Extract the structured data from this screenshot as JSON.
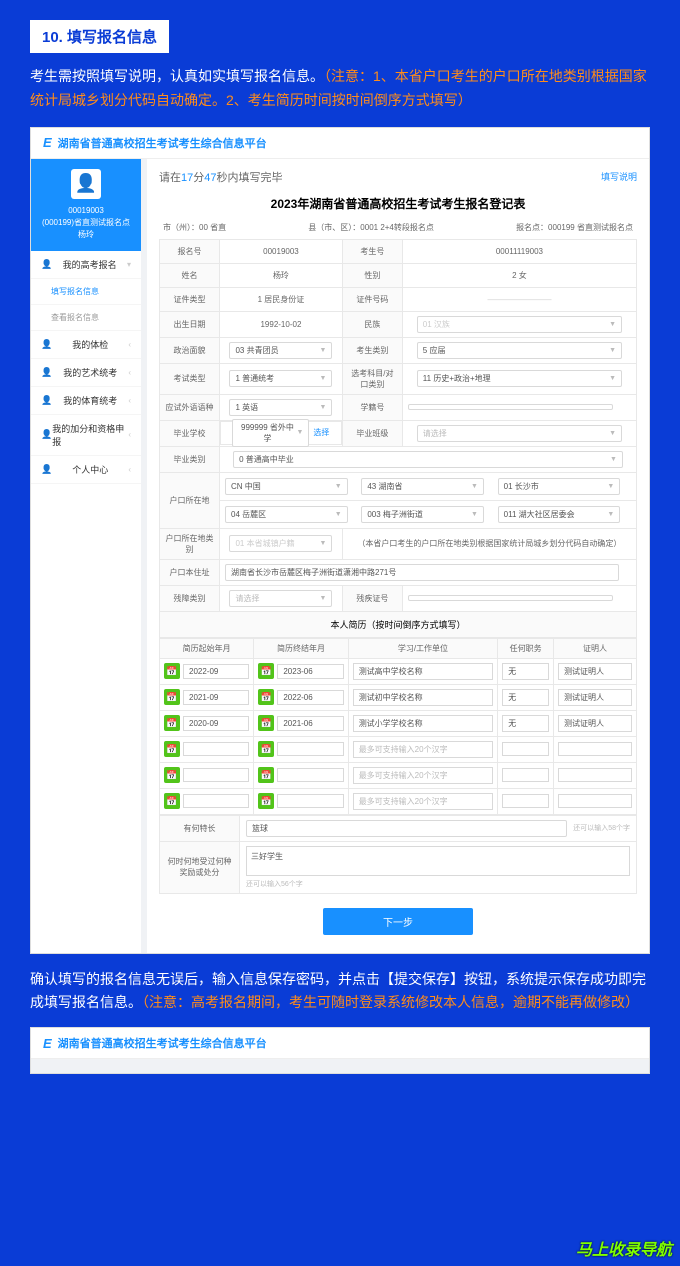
{
  "step": {
    "number": "10.",
    "title": "填写报名信息"
  },
  "instruction": {
    "main": "考生需按照填写说明，认真如实填写报名信息。",
    "note": "（注意：1、本省户口考生的户口所在地类别根据国家统计局城乡划分代码自动确定。2、考生简历时间按时间倒序方式填写）"
  },
  "app": {
    "logo": "E",
    "title": "湖南省普通高校招生考试考生综合信息平台"
  },
  "user": {
    "id": "00019003",
    "detail": "(000199)省直测试报名点",
    "name": "杨玲"
  },
  "nav": {
    "item1": "我的高考报名",
    "sub1": "填写报名信息",
    "sub2": "查看报名信息",
    "item2": "我的体检",
    "item3": "我的艺术统考",
    "item4": "我的体育统考",
    "item5": "我的加分和资格申报",
    "item6": "个人中心"
  },
  "timer": {
    "prefix": "请在",
    "min": "17",
    "minUnit": "分",
    "sec": "47",
    "secUnit": "秒内填写完毕",
    "link": "填写说明"
  },
  "formTitle": "2023年湖南省普通高校招生考试考生报名登记表",
  "meta": {
    "city": "市（州）：00 省直",
    "county": "县（市、区）：0001 2+4转段报名点",
    "site": "报名点：000199 省直测试报名点"
  },
  "labels": {
    "regNo": "报名号",
    "examNo": "考生号",
    "name": "姓名",
    "gender": "性别",
    "idType": "证件类型",
    "idNo": "证件号码",
    "birth": "出生日期",
    "nation": "民族",
    "politics": "政治面貌",
    "candType": "考生类别",
    "examType": "考试类型",
    "subjects": "选考科目/对口类别",
    "foreignLang": "应试外语语种",
    "studentNo": "学籍号",
    "gradSchool": "毕业学校",
    "gradClass": "毕业班级",
    "gradType": "毕业类别",
    "hukou": "户口所在地",
    "hukouType": "户口所在地类别",
    "address": "户口本住址",
    "disabilityType": "残障类别",
    "disabilityNo": "残疾证号"
  },
  "values": {
    "regNo": "00019003",
    "examNo": "00011119003",
    "name": "杨玲",
    "gender": "2 女",
    "idType": "1 居民身份证",
    "idNo": "————————",
    "birth": "1992-10-02",
    "nation": "01 汉族",
    "politics": "03 共青团员",
    "candType": "5 应届",
    "examType": "1 普通统考",
    "subjects": "11 历史+政治+地理",
    "foreignLang": "1 英语",
    "studentNo": "",
    "gradSchool": "999999 省外中学",
    "selectLink": "选择",
    "gradClass": "请选择",
    "gradType": "0 普通高中毕业",
    "hukou1": "CN 中国",
    "hukou2": "43 湖南省",
    "hukou3": "01 长沙市",
    "hukou4": "04 岳麓区",
    "hukou5": "003 梅子洲街道",
    "hukou6": "011 湖大社区居委会",
    "hukouType": "01 本省城镇户籍",
    "hukouNote": "（本省户口考生的户口所在地类别根据国家统计局城乡划分代码自动确定）",
    "address": "湖南省长沙市岳麓区梅子洲街道潇湘中路271号",
    "disabilityType": "请选择",
    "disabilityNo": ""
  },
  "resume": {
    "header": "本人简历（按时间倒序方式填写）",
    "cols": {
      "start": "简历起始年月",
      "end": "简历终结年月",
      "unit": "学习/工作单位",
      "duty": "任何职务",
      "witness": "证明人"
    },
    "rows": [
      {
        "start": "2022-09",
        "end": "2023-06",
        "unit": "测试高中学校名称",
        "duty": "无",
        "witness": "测试证明人"
      },
      {
        "start": "2021-09",
        "end": "2022-06",
        "unit": "测试初中学校名称",
        "duty": "无",
        "witness": "测试证明人"
      },
      {
        "start": "2020-09",
        "end": "2021-06",
        "unit": "测试小学学校名称",
        "duty": "无",
        "witness": "测试证明人"
      }
    ],
    "placeholder": "最多可支持输入20个汉字"
  },
  "extras": {
    "specialtyLabel": "有何特长",
    "specialtyValue": "篮球",
    "specialtyHint": "还可以输入58个字",
    "awardsLabel": "何时何地受过何种奖励或处分",
    "awardsValue": "三好学生",
    "awardsHint": "还可以输入56个字"
  },
  "nextButton": "下一步",
  "footer": {
    "main": "确认填写的报名信息无误后，输入信息保存密码，并点击【提交保存】按钮，系统提示保存成功即完成填写报名信息。",
    "note": "（注意：高考报名期间，考生可随时登录系统修改本人信息，逾期不能再做修改）"
  },
  "watermark": "马上收录导航"
}
